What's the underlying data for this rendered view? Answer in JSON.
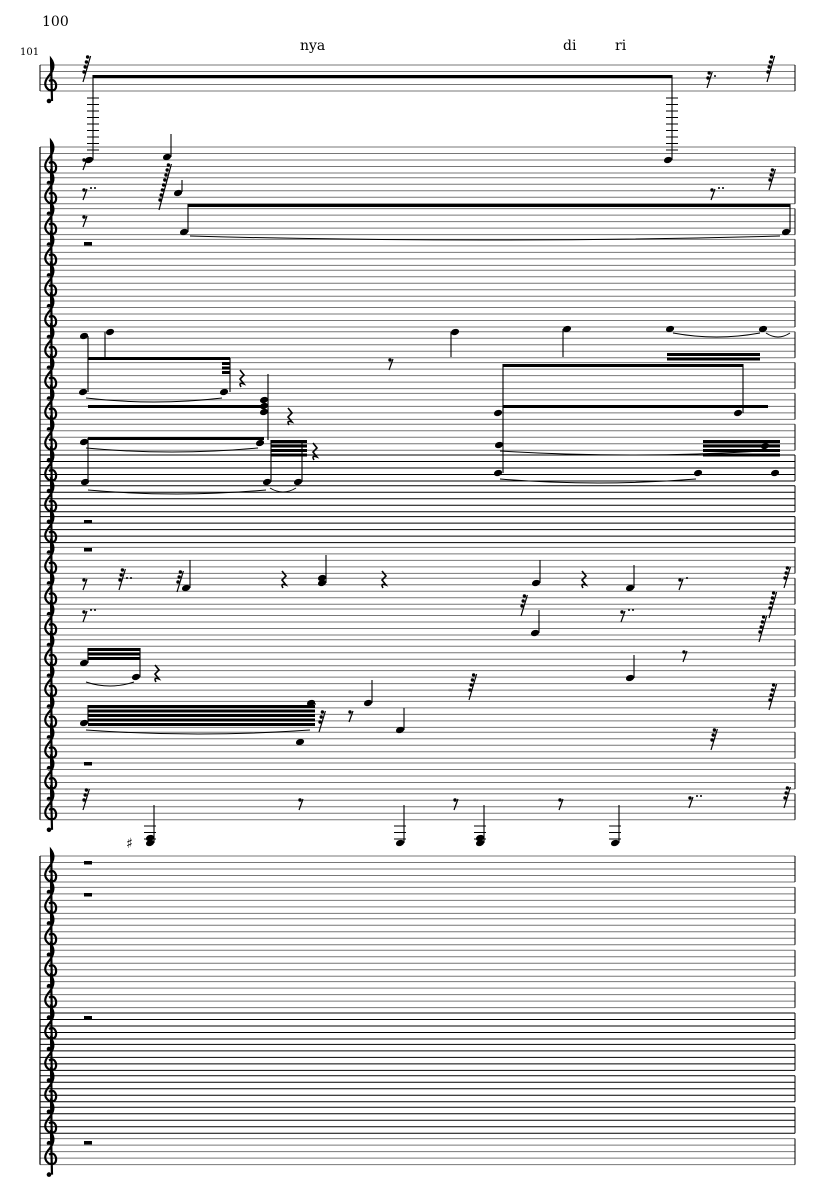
{
  "score": {
    "measure_numbers": [
      "100",
      "101"
    ],
    "lyrics": [
      "nya",
      "di",
      "ri"
    ],
    "clef": "treble-clef",
    "systems": [
      {
        "staves": 1
      },
      {
        "staves": 22
      },
      {
        "staves": 10
      }
    ],
    "colors": {
      "ink": "#000000",
      "staff_line": "#777777"
    }
  }
}
